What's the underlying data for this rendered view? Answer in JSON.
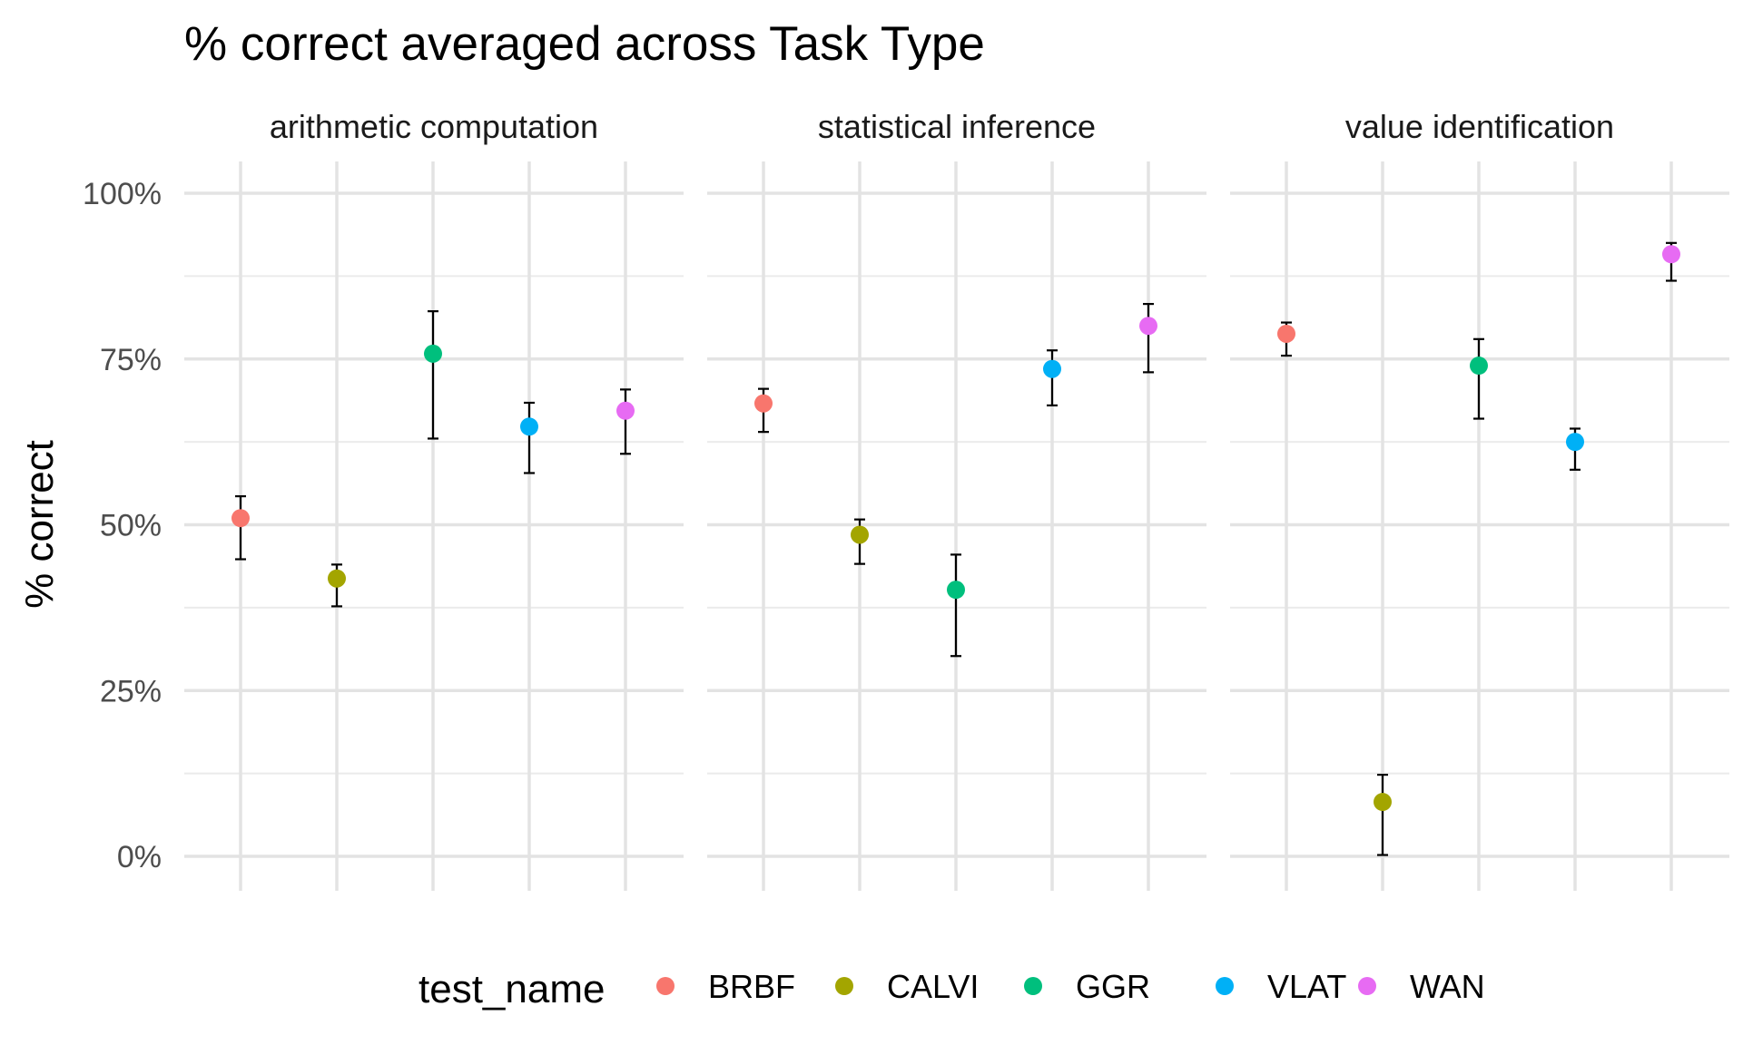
{
  "chart_data": {
    "type": "scatter",
    "title": "% correct averaged across Task Type",
    "ylabel": "% correct",
    "xlabel": "",
    "ylim": [
      0,
      1
    ],
    "y_ticks": [
      {
        "value": 0,
        "label": "0%"
      },
      {
        "value": 0.25,
        "label": "25%"
      },
      {
        "value": 0.5,
        "label": "50%"
      },
      {
        "value": 0.75,
        "label": "75%"
      },
      {
        "value": 1,
        "label": "100%"
      }
    ],
    "categories": [
      "BRBF",
      "CALVI",
      "GGR",
      "VLAT",
      "WAN"
    ],
    "colors": {
      "BRBF": "#F8766D",
      "CALVI": "#A3A500",
      "GGR": "#00BF7D",
      "VLAT": "#00B0F6",
      "WAN": "#E76BF3"
    },
    "grid": true,
    "legend": {
      "title": "test_name",
      "position": "bottom",
      "entries": [
        "BRBF",
        "CALVI",
        "GGR",
        "VLAT",
        "WAN"
      ]
    },
    "panels": [
      {
        "name": "arithmetic computation",
        "points": [
          {
            "test": "BRBF",
            "y": 0.51,
            "ymin": 0.448,
            "ymax": 0.543
          },
          {
            "test": "CALVI",
            "y": 0.419,
            "ymin": 0.377,
            "ymax": 0.44
          },
          {
            "test": "GGR",
            "y": 0.758,
            "ymin": 0.63,
            "ymax": 0.822
          },
          {
            "test": "VLAT",
            "y": 0.648,
            "ymin": 0.578,
            "ymax": 0.684
          },
          {
            "test": "WAN",
            "y": 0.672,
            "ymin": 0.607,
            "ymax": 0.704
          }
        ]
      },
      {
        "name": "statistical inference",
        "points": [
          {
            "test": "BRBF",
            "y": 0.683,
            "ymin": 0.64,
            "ymax": 0.705
          },
          {
            "test": "CALVI",
            "y": 0.485,
            "ymin": 0.441,
            "ymax": 0.508
          },
          {
            "test": "GGR",
            "y": 0.402,
            "ymin": 0.302,
            "ymax": 0.455
          },
          {
            "test": "VLAT",
            "y": 0.735,
            "ymin": 0.68,
            "ymax": 0.763
          },
          {
            "test": "WAN",
            "y": 0.8,
            "ymin": 0.73,
            "ymax": 0.833
          }
        ]
      },
      {
        "name": "value identification",
        "points": [
          {
            "test": "BRBF",
            "y": 0.788,
            "ymin": 0.755,
            "ymax": 0.805
          },
          {
            "test": "CALVI",
            "y": 0.082,
            "ymin": 0.002,
            "ymax": 0.123
          },
          {
            "test": "GGR",
            "y": 0.74,
            "ymin": 0.66,
            "ymax": 0.78
          },
          {
            "test": "VLAT",
            "y": 0.625,
            "ymin": 0.583,
            "ymax": 0.645
          },
          {
            "test": "WAN",
            "y": 0.908,
            "ymin": 0.868,
            "ymax": 0.925
          }
        ]
      }
    ]
  }
}
